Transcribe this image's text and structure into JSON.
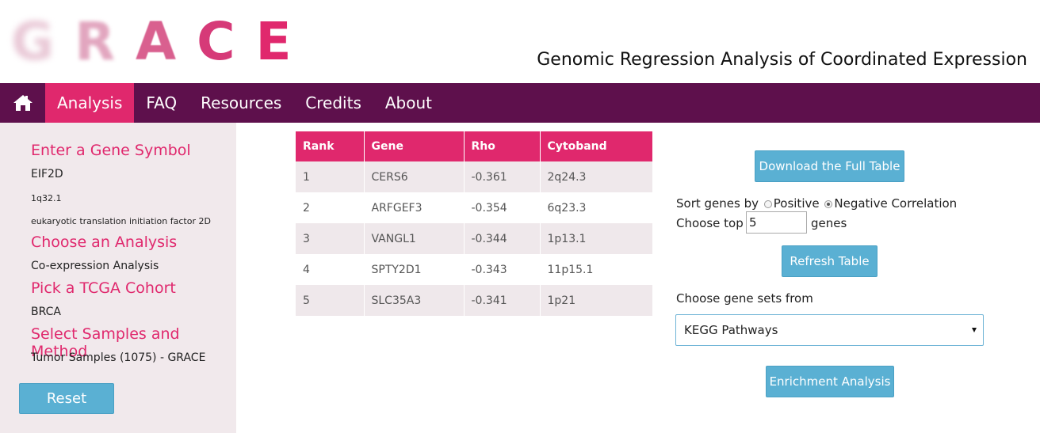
{
  "header": {
    "logo_letters": [
      "G",
      "R",
      "A",
      "C",
      "E"
    ],
    "subtitle": "Genomic Regression Analysis of Coordinated Expression"
  },
  "nav": {
    "home_icon": "home-icon",
    "items": [
      {
        "label": "Analysis",
        "active": true
      },
      {
        "label": "FAQ",
        "active": false
      },
      {
        "label": "Resources",
        "active": false
      },
      {
        "label": "Credits",
        "active": false
      },
      {
        "label": "About",
        "active": false
      }
    ]
  },
  "sidebar": {
    "gene_heading": "Enter a Gene Symbol",
    "gene_symbol": "EIF2D",
    "gene_location": "1q32.1",
    "gene_description": "eukaryotic translation initiation factor 2D",
    "analysis_heading": "Choose an Analysis",
    "analysis_value": "Co-expression Analysis",
    "cohort_heading": "Pick a TCGA Cohort",
    "cohort_value": "BRCA",
    "samples_heading": "Select Samples and Method",
    "samples_value": "Tumor Samples (1075) - GRACE",
    "reset_label": "Reset"
  },
  "table": {
    "headers": [
      "Rank",
      "Gene",
      "Rho",
      "Cytoband"
    ],
    "rows": [
      [
        "1",
        "CERS6",
        "-0.361",
        "2q24.3"
      ],
      [
        "2",
        "ARFGEF3",
        "-0.354",
        "6q23.3"
      ],
      [
        "3",
        "VANGL1",
        "-0.344",
        "1p13.1"
      ],
      [
        "4",
        "SPTY2D1",
        "-0.343",
        "11p15.1"
      ],
      [
        "5",
        "SLC35A3",
        "-0.341",
        "1p21"
      ]
    ]
  },
  "controls": {
    "download_label": "Download the Full Table",
    "sort_label": "Sort genes by",
    "positive_label": "Positive",
    "negative_label": "Negative Correlation",
    "sort_selected": "negative",
    "choose_top_label": "Choose top",
    "top_value": "5",
    "genes_label": "genes",
    "refresh_label": "Refresh Table",
    "gene_sets_label": "Choose gene sets from",
    "gene_sets_selected": "KEGG Pathways",
    "enrichment_label": "Enrichment Analysis"
  },
  "colors": {
    "accent_pink": "#e0286d",
    "nav_purple": "#5e104c",
    "button_blue": "#5ab0d3",
    "sidebar_bg": "#f1e9ec"
  }
}
